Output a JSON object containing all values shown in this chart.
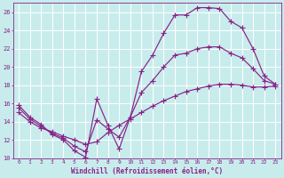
{
  "xlabel": "Windchill (Refroidissement éolien,°C)",
  "bg_color": "#c8ecec",
  "grid_color": "#b8dada",
  "line_color": "#882288",
  "xlim": [
    -0.5,
    23.5
  ],
  "ylim": [
    10,
    27
  ],
  "xticks": [
    0,
    1,
    2,
    3,
    4,
    5,
    6,
    7,
    8,
    9,
    10,
    11,
    12,
    13,
    14,
    15,
    16,
    17,
    18,
    19,
    20,
    21,
    22,
    23
  ],
  "yticks": [
    10,
    12,
    14,
    16,
    18,
    20,
    22,
    24,
    26
  ],
  "line1_x": [
    0,
    1,
    2,
    3,
    4,
    5,
    6,
    7,
    8,
    9,
    10,
    11,
    12,
    13,
    14,
    15,
    16,
    17,
    18,
    19,
    20,
    21,
    22,
    23
  ],
  "line1_y": [
    15.8,
    14.5,
    13.7,
    12.6,
    12.0,
    10.8,
    10.1,
    16.5,
    13.6,
    11.0,
    14.5,
    19.5,
    21.3,
    23.7,
    25.7,
    25.7,
    26.5,
    26.5,
    26.4,
    25.0,
    24.3,
    22.0,
    19.0,
    18.1
  ],
  "line2_x": [
    0,
    1,
    2,
    3,
    4,
    5,
    6,
    7,
    8,
    9,
    10,
    11,
    12,
    13,
    14,
    15,
    16,
    17,
    18,
    19,
    20,
    21,
    22,
    23
  ],
  "line2_y": [
    15.5,
    14.3,
    13.5,
    12.7,
    12.2,
    11.3,
    10.7,
    14.2,
    13.2,
    12.3,
    14.5,
    17.2,
    18.5,
    20.0,
    21.3,
    21.5,
    22.0,
    22.2,
    22.2,
    21.5,
    21.0,
    19.8,
    18.5,
    18.1
  ],
  "line3_x": [
    0,
    1,
    2,
    3,
    4,
    5,
    6,
    7,
    8,
    9,
    10,
    11,
    12,
    13,
    14,
    15,
    16,
    17,
    18,
    19,
    20,
    21,
    22,
    23
  ],
  "line3_y": [
    15.0,
    14.0,
    13.3,
    12.9,
    12.4,
    12.0,
    11.5,
    11.8,
    12.8,
    13.6,
    14.3,
    15.0,
    15.7,
    16.3,
    16.8,
    17.3,
    17.6,
    17.9,
    18.1,
    18.1,
    18.0,
    17.8,
    17.8,
    17.9
  ]
}
